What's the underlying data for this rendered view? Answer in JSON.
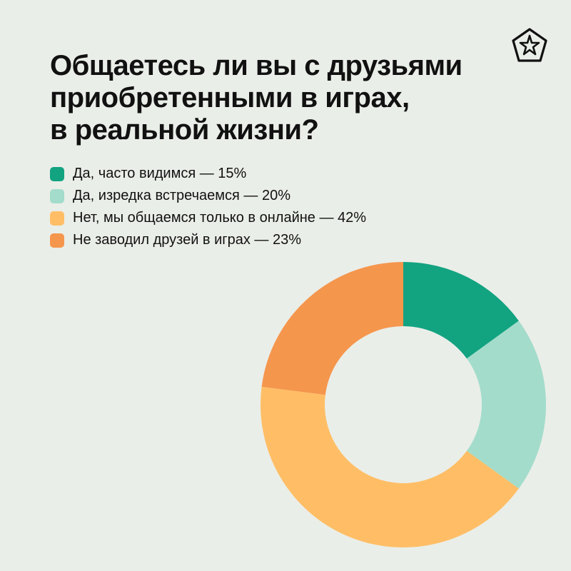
{
  "colors": {
    "background": "#EAEEE8",
    "text": "#111111",
    "series": [
      "#12A381",
      "#A3DCCB",
      "#FFBE66",
      "#F5964D"
    ]
  },
  "header": {
    "logo_icon": "star-pentagon-logo-icon",
    "title_lines": [
      "Общаетесь ли вы с друзьями",
      "приобретенными в играх,",
      "в реальной жизни?"
    ]
  },
  "chart_data": {
    "type": "pie",
    "variant": "donut",
    "title": "Общаетесь ли вы с друзьями приобретенными в играх, в реальной жизни?",
    "legend_placement": "top-left",
    "unit": "%",
    "slices": [
      {
        "label": "Да, часто видимся — 15%",
        "value": 15,
        "color": "#12A381"
      },
      {
        "label": "Да, изредка встречаемся — 20%",
        "value": 20,
        "color": "#A3DCCB"
      },
      {
        "label": "Нет, мы общаемся только в онлайне — 42%",
        "value": 42,
        "color": "#FFBE66"
      },
      {
        "label": "Не заводил друзей в играх — 23%",
        "value": 23,
        "color": "#F5964D"
      }
    ]
  }
}
